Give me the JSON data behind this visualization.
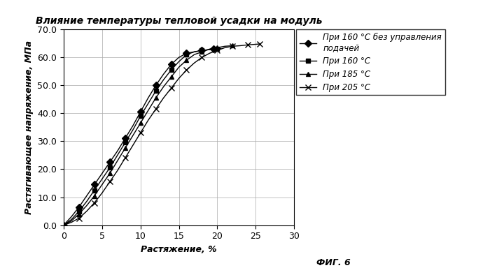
{
  "title": "Влияние температуры тепловой усадки на модуль",
  "xlabel": "Растяжение, %",
  "ylabel": "Растягивающее напряжение, МПа",
  "caption": "ФИГ. 6",
  "xlim": [
    0,
    30
  ],
  "ylim": [
    0,
    70
  ],
  "xticks": [
    0,
    5,
    10,
    15,
    20,
    25,
    30
  ],
  "yticks": [
    0.0,
    10.0,
    20.0,
    30.0,
    40.0,
    50.0,
    60.0,
    70.0
  ],
  "series": [
    {
      "label": "При 160 °C без управления\nподачей",
      "marker": "D",
      "markersize": 5,
      "color": "#000000",
      "x": [
        0,
        1,
        2,
        3,
        4,
        5,
        6,
        7,
        8,
        9,
        10,
        11,
        12,
        13,
        14,
        15,
        16,
        17,
        18,
        19,
        19.5
      ],
      "y": [
        0,
        3.0,
        6.5,
        10.5,
        14.5,
        18.5,
        22.5,
        26.5,
        31.0,
        35.5,
        40.5,
        45.5,
        50.0,
        54.0,
        57.5,
        60.0,
        61.5,
        62.0,
        62.5,
        62.8,
        63.0
      ]
    },
    {
      "label": "При 160 °C",
      "marker": "s",
      "markersize": 5,
      "color": "#000000",
      "x": [
        0,
        1,
        2,
        3,
        4,
        5,
        6,
        7,
        8,
        9,
        10,
        11,
        12,
        13,
        14,
        15,
        16,
        17,
        18,
        19,
        20,
        20.5
      ],
      "y": [
        0,
        2.0,
        5.0,
        8.5,
        12.5,
        16.5,
        20.5,
        25.0,
        29.5,
        34.0,
        39.0,
        43.5,
        48.0,
        52.0,
        55.5,
        58.5,
        61.0,
        62.0,
        62.5,
        62.8,
        63.0,
        63.2
      ]
    },
    {
      "label": "При 185 °C",
      "marker": "^",
      "markersize": 5,
      "color": "#000000",
      "x": [
        0,
        1,
        2,
        3,
        4,
        5,
        6,
        7,
        8,
        9,
        10,
        11,
        12,
        13,
        14,
        15,
        16,
        17,
        18,
        19,
        20,
        21,
        22
      ],
      "y": [
        0,
        1.5,
        4.0,
        7.0,
        10.5,
        14.5,
        18.5,
        23.0,
        27.5,
        32.0,
        36.5,
        41.0,
        45.5,
        49.5,
        53.0,
        56.5,
        59.0,
        61.0,
        62.0,
        63.0,
        63.5,
        64.0,
        64.2
      ]
    },
    {
      "label": "При 205 °C",
      "marker": "x",
      "markersize": 6,
      "color": "#000000",
      "x": [
        0,
        1,
        2,
        3,
        4,
        5,
        6,
        7,
        8,
        9,
        10,
        11,
        12,
        13,
        14,
        15,
        16,
        17,
        18,
        19,
        20,
        21,
        22,
        23,
        24,
        25,
        25.5
      ],
      "y": [
        0,
        1.0,
        2.5,
        5.0,
        8.0,
        11.5,
        15.5,
        19.5,
        24.0,
        28.5,
        33.0,
        37.5,
        41.5,
        45.5,
        49.0,
        52.5,
        55.5,
        58.0,
        60.0,
        61.5,
        62.5,
        63.5,
        64.0,
        64.2,
        64.5,
        64.7,
        64.8
      ]
    }
  ],
  "background_color": "#ffffff",
  "grid_color": "#aaaaaa",
  "title_fontsize": 10,
  "label_fontsize": 9,
  "tick_fontsize": 9,
  "legend_fontsize": 8.5
}
